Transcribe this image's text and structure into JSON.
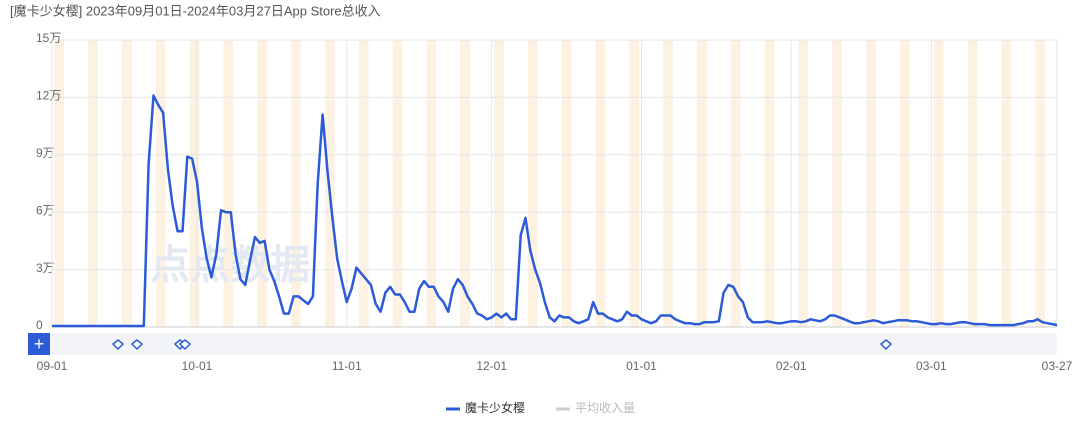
{
  "chart_data": {
    "type": "line",
    "title": "[魔卡少女樱]  2023年09月01日-2024年03月27日App Store总收入",
    "watermark": "点点数据",
    "x": [
      "09-01",
      null,
      null,
      null,
      null,
      null,
      null,
      null,
      null,
      null,
      null,
      null,
      null,
      null,
      null,
      null,
      null,
      null,
      null,
      null,
      null,
      null,
      null,
      null,
      null,
      null,
      null,
      null,
      null,
      null,
      "10-01",
      null,
      null,
      null,
      null,
      null,
      null,
      null,
      null,
      null,
      null,
      null,
      null,
      null,
      null,
      null,
      null,
      null,
      null,
      null,
      null,
      null,
      null,
      null,
      null,
      null,
      null,
      null,
      null,
      null,
      null,
      "11-01",
      null,
      null,
      null,
      null,
      null,
      null,
      null,
      null,
      null,
      null,
      null,
      null,
      null,
      null,
      null,
      null,
      null,
      null,
      null,
      null,
      null,
      null,
      null,
      null,
      null,
      null,
      null,
      null,
      null,
      "12-01",
      null,
      null,
      null,
      null,
      null,
      null,
      null,
      null,
      null,
      null,
      null,
      null,
      null,
      null,
      null,
      null,
      null,
      null,
      null,
      null,
      null,
      null,
      null,
      null,
      null,
      null,
      null,
      null,
      null,
      null,
      "01-01",
      null,
      null,
      null,
      null,
      null,
      null,
      null,
      null,
      null,
      null,
      null,
      null,
      null,
      null,
      null,
      null,
      null,
      null,
      null,
      null,
      null,
      null,
      null,
      null,
      null,
      null,
      null,
      null,
      null,
      null,
      "02-01",
      null,
      null,
      null,
      null,
      null,
      null,
      null,
      null,
      null,
      null,
      null,
      null,
      null,
      null,
      null,
      null,
      null,
      null,
      null,
      null,
      null,
      null,
      null,
      null,
      null,
      null,
      null,
      null,
      "03-01",
      null,
      null,
      null,
      null,
      null,
      null,
      null,
      null,
      null,
      null,
      null,
      null,
      null,
      null,
      null,
      null,
      null,
      null,
      null,
      null,
      null,
      null,
      null,
      null,
      null,
      "03-27"
    ],
    "series": [
      {
        "name": "魔卡少女樱",
        "color": "#2b5bd7",
        "values": [
          0.05,
          0.05,
          0.05,
          0.05,
          0.05,
          0.05,
          0.05,
          0.05,
          0.05,
          0.05,
          0.05,
          0.05,
          0.05,
          0.05,
          0.05,
          0.05,
          0.05,
          0.05,
          0.05,
          0.05,
          8.5,
          12.1,
          11.6,
          11.2,
          8.2,
          6.3,
          5.0,
          5.0,
          8.9,
          8.8,
          7.6,
          5.2,
          3.6,
          2.6,
          3.8,
          6.1,
          6.0,
          6.0,
          3.8,
          2.5,
          2.2,
          3.5,
          4.7,
          4.4,
          4.5,
          3.0,
          2.4,
          1.6,
          0.7,
          0.7,
          1.6,
          1.6,
          1.4,
          1.2,
          1.6,
          7.5,
          11.1,
          8.2,
          5.8,
          3.6,
          2.4,
          1.3,
          2.0,
          3.1,
          2.8,
          2.5,
          2.2,
          1.2,
          0.8,
          1.8,
          2.1,
          1.7,
          1.7,
          1.3,
          0.8,
          0.8,
          2.0,
          2.4,
          2.1,
          2.1,
          1.6,
          1.3,
          0.8,
          2.0,
          2.5,
          2.2,
          1.6,
          1.2,
          0.7,
          0.6,
          0.4,
          0.5,
          0.7,
          0.5,
          0.7,
          0.4,
          0.4,
          4.8,
          5.7,
          4.0,
          3.0,
          2.3,
          1.3,
          0.5,
          0.3,
          0.6,
          0.5,
          0.5,
          0.3,
          0.2,
          0.3,
          0.4,
          1.3,
          0.7,
          0.7,
          0.5,
          0.4,
          0.3,
          0.4,
          0.8,
          0.6,
          0.6,
          0.4,
          0.3,
          0.2,
          0.3,
          0.6,
          0.6,
          0.6,
          0.4,
          0.3,
          0.2,
          0.2,
          0.15,
          0.15,
          0.25,
          0.25,
          0.25,
          0.3,
          1.8,
          2.2,
          2.1,
          1.6,
          1.3,
          0.5,
          0.25,
          0.25,
          0.25,
          0.3,
          0.25,
          0.2,
          0.2,
          0.25,
          0.3,
          0.3,
          0.25,
          0.3,
          0.4,
          0.35,
          0.3,
          0.4,
          0.6,
          0.6,
          0.5,
          0.4,
          0.3,
          0.2,
          0.2,
          0.25,
          0.3,
          0.35,
          0.3,
          0.2,
          0.25,
          0.3,
          0.35,
          0.35,
          0.35,
          0.3,
          0.3,
          0.25,
          0.2,
          0.15,
          0.15,
          0.2,
          0.15,
          0.15,
          0.2,
          0.25,
          0.25,
          0.2,
          0.15,
          0.15,
          0.15,
          0.1,
          0.1,
          0.1,
          0.1,
          0.1,
          0.1,
          0.15,
          0.2,
          0.3,
          0.3,
          0.4,
          0.25,
          0.2,
          0.15,
          0.1
        ]
      },
      {
        "name": "平均收入量",
        "color": "#cccccc",
        "hidden": true
      }
    ],
    "ylim": [
      0,
      15
    ],
    "yticks": [
      0,
      {
        "value": 3,
        "label": "3万"
      },
      {
        "value": 6,
        "label": "6万"
      },
      {
        "value": 9,
        "label": "9万"
      },
      {
        "value": 12,
        "label": "12万"
      },
      {
        "value": 15,
        "label": "15万"
      }
    ],
    "grid": true
  }
}
